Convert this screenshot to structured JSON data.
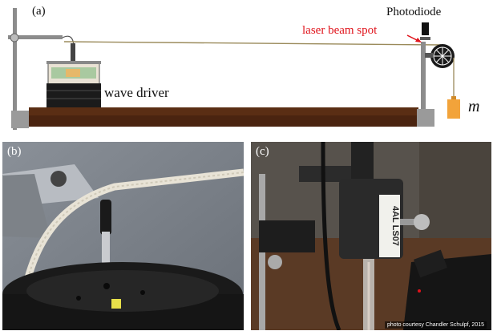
{
  "panels": {
    "a": {
      "label": "(a)",
      "photodiode": "Photodiode",
      "laser_spot": "laser beam spot",
      "wave_driver": "wave driver",
      "mass": "m"
    },
    "b": {
      "label": "(b)"
    },
    "c": {
      "label": "(c)",
      "tag_text": "4AL LS07",
      "credit": "photo courtesy Chandler Schulpf, 2015"
    }
  },
  "colors": {
    "laser_red": "#e0131b",
    "table_wood": "#5a2e14",
    "mass_orange": "#f2a33a",
    "string": "#9a8a5a"
  }
}
